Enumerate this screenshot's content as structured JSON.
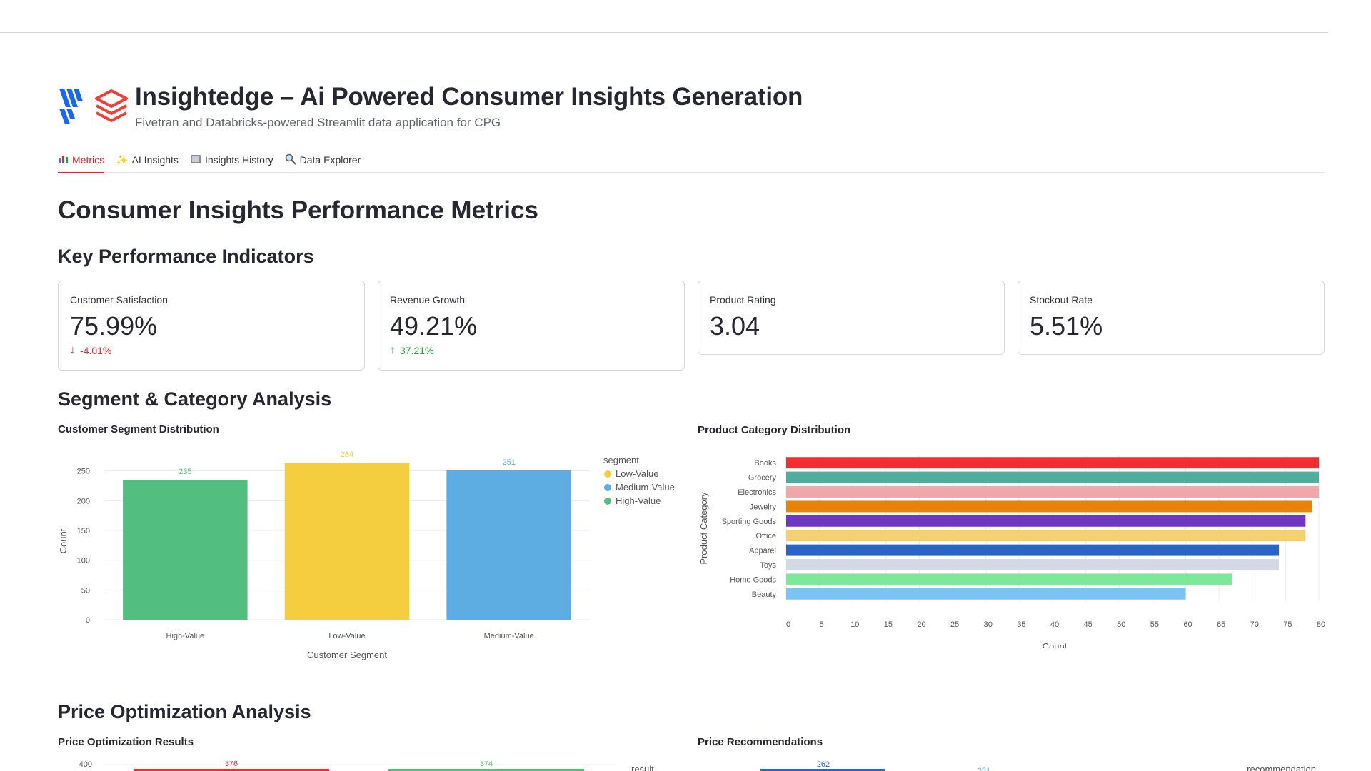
{
  "app": {
    "title": "Insightedge – Ai Powered Consumer Insights Generation",
    "subtitle": "Fivetran and Databricks-powered Streamlit data application for CPG"
  },
  "tabs": [
    {
      "label": "Metrics",
      "icon": "bar-chart-icon",
      "active": true
    },
    {
      "label": "AI Insights",
      "icon": "sparkles-icon",
      "active": false
    },
    {
      "label": "Insights History",
      "icon": "book-icon",
      "active": false
    },
    {
      "label": "Data Explorer",
      "icon": "magnifier-icon",
      "active": false
    }
  ],
  "page_title": "Consumer Insights Performance Metrics",
  "sections": {
    "kpi": "Key Performance Indicators",
    "segment": "Segment & Category Analysis",
    "price": "Price Optimization Analysis"
  },
  "kpis": [
    {
      "label": "Customer Satisfaction",
      "value": "75.99%",
      "delta": "-4.01%",
      "direction": "down"
    },
    {
      "label": "Revenue Growth",
      "value": "49.21%",
      "delta": "37.21%",
      "direction": "up"
    },
    {
      "label": "Product Rating",
      "value": "3.04",
      "delta": "",
      "direction": "none"
    },
    {
      "label": "Stockout Rate",
      "value": "5.51%",
      "delta": "",
      "direction": "none"
    }
  ],
  "colors": {
    "accent": "#e8222f",
    "low_value": "#f4ce3e",
    "medium_value": "#5dade2",
    "high_value": "#52be80"
  },
  "chart_data": [
    {
      "type": "bar",
      "title": "Customer Segment Distribution",
      "xlabel": "Customer Segment",
      "ylabel": "Count",
      "categories": [
        "High-Value",
        "Low-Value",
        "Medium-Value"
      ],
      "values": [
        235,
        264,
        251
      ],
      "bar_colors": [
        "#52be80",
        "#f4ce3e",
        "#5dade2"
      ],
      "ylim": [
        0,
        264
      ],
      "yticks": [
        0,
        50,
        100,
        150,
        200,
        250
      ],
      "legend": {
        "title": "segment",
        "items": [
          {
            "name": "Low-Value",
            "color": "#f4ce3e"
          },
          {
            "name": "Medium-Value",
            "color": "#5dade2"
          },
          {
            "name": "High-Value",
            "color": "#52be80"
          }
        ],
        "placement": "right"
      },
      "grid": true
    },
    {
      "type": "bar",
      "orientation": "horizontal",
      "title": "Product Category Distribution",
      "xlabel": "Count",
      "ylabel": "Product Category",
      "categories": [
        "Books",
        "Grocery",
        "Electronics",
        "Jewelry",
        "Sporting Goods",
        "Office",
        "Apparel",
        "Toys",
        "Home Goods",
        "Beauty"
      ],
      "values": [
        80,
        80,
        80,
        79,
        78,
        78,
        74,
        74,
        67,
        60
      ],
      "bar_colors": [
        "#ee2e31",
        "#4daf9b",
        "#f1a7a9",
        "#ea8205",
        "#6f36c2",
        "#f4d06f",
        "#2a65c4",
        "#d4d8e5",
        "#7ee89a",
        "#7cc3f5"
      ],
      "xlim": [
        0,
        80
      ],
      "xticks": [
        0,
        5,
        10,
        15,
        20,
        25,
        30,
        35,
        40,
        45,
        50,
        55,
        60,
        65,
        70,
        75,
        80
      ],
      "grid": true
    },
    {
      "type": "bar",
      "title": "Price Optimization Results",
      "legend_title": "result",
      "yticks_visible": [
        400
      ],
      "data_labels": [
        376,
        374
      ],
      "bar_colors": [
        "#ee2e31",
        "#52be80"
      ]
    },
    {
      "type": "bar",
      "title": "Price Recommendations",
      "legend_title": "recommendation",
      "data_labels": [
        262,
        251
      ],
      "bar_colors": [
        "#2a65c4",
        "#5dade2"
      ]
    }
  ]
}
